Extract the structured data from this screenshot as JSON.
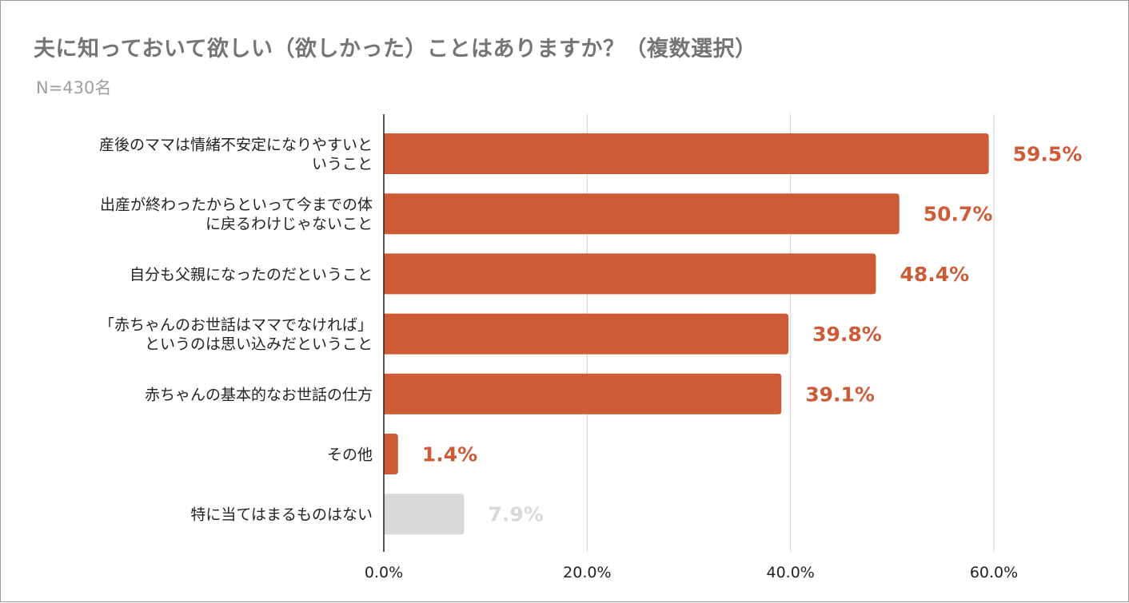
{
  "chart_data": {
    "type": "bar",
    "orientation": "horizontal",
    "title": "夫に知っておいて欲しい（欲しかった）ことはありますか？（複数選択）",
    "subtitle": "N=430名",
    "categories": [
      [
        "産後のママは情緒不安定になりやすいと",
        "いうこと"
      ],
      [
        "出産が終わったからといって今までの体",
        "に戻るわけじゃないこと"
      ],
      [
        "自分も父親になったのだということ"
      ],
      [
        "「赤ちゃんのお世話はママでなければ」",
        "というのは思い込みだということ"
      ],
      [
        "赤ちゃんの基本的なお世話の仕方"
      ],
      [
        "その他"
      ],
      [
        "特に当てはまるものはない"
      ]
    ],
    "values": [
      59.5,
      50.7,
      48.4,
      39.8,
      39.1,
      1.4,
      7.9
    ],
    "value_labels": [
      "59.5%",
      "50.7%",
      "48.4%",
      "39.8%",
      "39.1%",
      "1.4%",
      "7.9%"
    ],
    "bar_colors": [
      "#cd5c36",
      "#cd5c36",
      "#cd5c36",
      "#cd5c36",
      "#cd5c36",
      "#cd5c36",
      "#d9d9d9"
    ],
    "label_colors": [
      "#cd5c36",
      "#cd5c36",
      "#cd5c36",
      "#cd5c36",
      "#cd5c36",
      "#cd5c36",
      "#d9d9d9"
    ],
    "xlim": [
      0,
      60
    ],
    "xticks": [
      0,
      20,
      40,
      60
    ],
    "xtick_labels": [
      "0.0%",
      "20.0%",
      "40.0%",
      "60.0%"
    ],
    "grid": true,
    "legend": "none"
  }
}
